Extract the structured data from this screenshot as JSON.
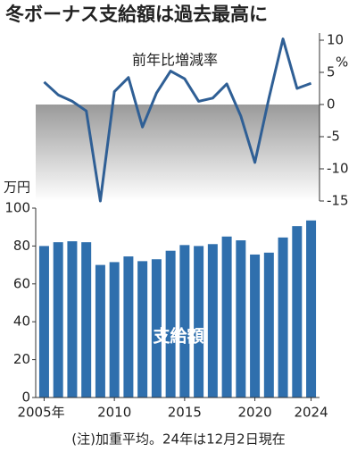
{
  "title": "冬ボーナス支給額は過去最高に",
  "note": "(注)加重平均。24年は12月2日現在",
  "chart_data": [
    {
      "type": "line",
      "label": "前年比増減率",
      "unit": "%",
      "x": [
        2005,
        2006,
        2007,
        2008,
        2009,
        2010,
        2011,
        2012,
        2013,
        2014,
        2015,
        2016,
        2017,
        2018,
        2019,
        2020,
        2021,
        2022,
        2023,
        2024
      ],
      "series": [
        {
          "name": "前年比増減率",
          "color": "#2f5f95",
          "axis": "y2",
          "values": [
            3.5,
            1.5,
            0.5,
            -1,
            -15,
            2,
            4.2,
            -3.5,
            1.8,
            5.2,
            4,
            0.5,
            1,
            3.2,
            -1.8,
            -9,
            1,
            10.2,
            2.5,
            3.3
          ]
        }
      ],
      "xlim": [
        2004.4,
        2024.6
      ],
      "y2lim": [
        -15,
        10
      ],
      "y2ticks": [
        10,
        5,
        0,
        -5,
        -10,
        -15
      ]
    },
    {
      "type": "bar",
      "y_label": "万円",
      "x": [
        2005,
        2006,
        2007,
        2008,
        2009,
        2010,
        2011,
        2012,
        2013,
        2014,
        2015,
        2016,
        2017,
        2018,
        2019,
        2020,
        2021,
        2022,
        2023,
        2024
      ],
      "series": [
        {
          "name": "支給額",
          "color": "#2f6fad",
          "values": [
            80,
            82,
            82.5,
            82,
            70,
            71.5,
            74.5,
            72,
            73,
            77.5,
            80.5,
            80,
            81,
            85,
            83,
            75.5,
            76.5,
            84.5,
            90.5,
            93.5
          ]
        }
      ],
      "xlim": [
        2004.4,
        2024.6
      ],
      "xticks": [
        {
          "value": 2005,
          "label": "2005年"
        },
        2010,
        2015,
        2020,
        2024
      ],
      "ylim": [
        0,
        100
      ],
      "yticks": [
        0,
        20,
        40,
        60,
        80,
        100
      ]
    }
  ]
}
